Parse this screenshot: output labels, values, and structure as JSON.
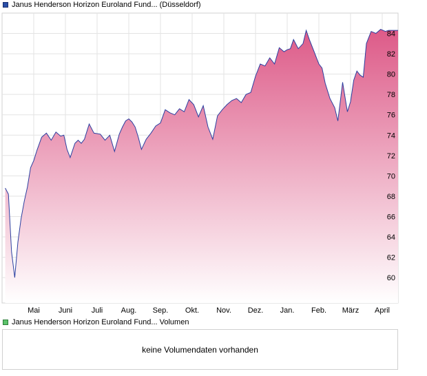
{
  "price_legend": {
    "label": "Janus Henderson Horizon Euroland Fund... (Düsseldorf)",
    "color": "#2a4fa8"
  },
  "volume_legend": {
    "label": "Janus Henderson Horizon Euroland Fund... Volumen",
    "color": "#5cc26a"
  },
  "volume_panel": {
    "message": "keine Volumendaten vorhanden"
  },
  "colors": {
    "line": "#2b3fa0",
    "fill_top": "#dd5a88",
    "fill_bottom": "#ffffff",
    "grid": "#e3e3e3"
  },
  "chart_data": {
    "type": "area",
    "title": "",
    "xlabel": "",
    "ylabel": "",
    "ylim": [
      57.5,
      86
    ],
    "y_ticks": [
      60,
      62,
      64,
      66,
      68,
      70,
      72,
      74,
      76,
      78,
      80,
      82,
      84
    ],
    "x_ticks": [
      "Mai",
      "Juni",
      "Juli",
      "Aug.",
      "Sep.",
      "Okt.",
      "Nov.",
      "Dez.",
      "Jan.",
      "Feb.",
      "März",
      "April"
    ],
    "x_tick_month_index": [
      1,
      2,
      3,
      4,
      5,
      6,
      7,
      8,
      9,
      10,
      11,
      12
    ],
    "grid": true,
    "series": [
      {
        "name": "",
        "x": [
          0.1,
          0.2,
          0.3,
          0.4,
          0.5,
          0.6,
          0.7,
          0.8,
          0.9,
          1.0,
          1.1,
          1.25,
          1.4,
          1.55,
          1.7,
          1.85,
          1.95,
          2.05,
          2.15,
          2.3,
          2.4,
          2.5,
          2.6,
          2.75,
          2.9,
          3.1,
          3.25,
          3.4,
          3.55,
          3.7,
          3.8,
          3.9,
          4.0,
          4.1,
          4.2,
          4.3,
          4.4,
          4.55,
          4.7,
          4.85,
          5.0,
          5.15,
          5.3,
          5.45,
          5.6,
          5.75,
          5.9,
          6.05,
          6.2,
          6.35,
          6.5,
          6.65,
          6.8,
          6.95,
          7.1,
          7.25,
          7.4,
          7.55,
          7.7,
          7.85,
          8.0,
          8.15,
          8.3,
          8.45,
          8.6,
          8.75,
          8.9,
          9.0,
          9.1,
          9.2,
          9.35,
          9.5,
          9.6,
          9.7,
          9.85,
          10.0,
          10.1,
          10.2,
          10.35,
          10.5,
          10.6,
          10.75,
          10.9,
          11.0,
          11.1,
          11.2,
          11.3,
          11.4,
          11.5,
          11.65,
          11.8,
          11.95,
          12.1,
          12.2,
          12.35,
          12.5
        ],
        "values": [
          68.8,
          68.2,
          62.5,
          60.0,
          63.5,
          65.8,
          67.5,
          68.9,
          70.8,
          71.5,
          72.5,
          73.8,
          74.2,
          73.5,
          74.3,
          73.9,
          74.0,
          72.6,
          71.8,
          73.2,
          73.5,
          73.2,
          73.6,
          75.1,
          74.2,
          74.1,
          73.5,
          74.0,
          72.4,
          74.1,
          74.8,
          75.4,
          75.6,
          75.3,
          74.8,
          73.8,
          72.6,
          73.6,
          74.2,
          74.9,
          75.2,
          76.5,
          76.2,
          76.0,
          76.6,
          76.3,
          77.5,
          77.0,
          75.8,
          76.9,
          74.8,
          73.6,
          75.9,
          76.5,
          77.0,
          77.4,
          77.6,
          77.2,
          78.0,
          78.2,
          79.8,
          81.0,
          80.8,
          81.6,
          81.0,
          82.6,
          82.2,
          82.4,
          82.5,
          83.4,
          82.5,
          83.0,
          84.3,
          83.4,
          82.2,
          81.0,
          80.6,
          79.1,
          77.6,
          76.7,
          75.4,
          79.2,
          76.3,
          77.3,
          79.4,
          80.3,
          79.9,
          79.7,
          83.0,
          84.2,
          84.0,
          84.4,
          84.2,
          84.3,
          84.3,
          84.3
        ]
      }
    ]
  }
}
